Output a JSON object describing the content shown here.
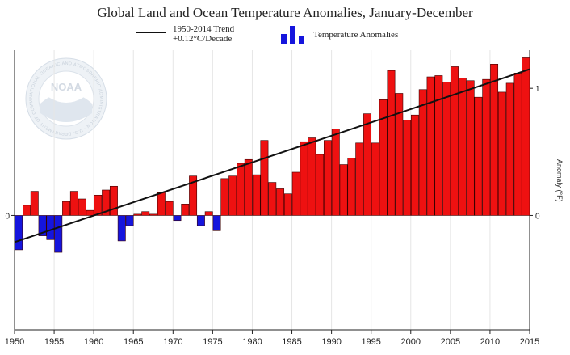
{
  "title": "Global Land and Ocean Temperature Anomalies, January-December",
  "legend": {
    "trend_line1": "1950-2014 Trend",
    "trend_line2": "+0.12°C/Decade",
    "anomalies_label": "Temperature Anomalies"
  },
  "watermark": {
    "text": "NOAA",
    "ring_text": "NATIONAL OCEANIC AND ATMOSPHERIC ADMINISTRATION · U.S. DEPARTMENT OF COMMERCE"
  },
  "colors": {
    "positive": "#ee1111",
    "negative": "#1515dd",
    "trend": "#111111",
    "grid": "#e6e6e6"
  },
  "chart_data": {
    "type": "bar",
    "title": "Global Land and Ocean Temperature Anomalies, January-December",
    "xlabel": "",
    "ylabel_right": "Anomaly (°F)",
    "xlim": [
      1950,
      2015
    ],
    "ylim": [
      -0.9,
      1.3
    ],
    "x_ticks": [
      1950,
      1955,
      1960,
      1965,
      1970,
      1975,
      1980,
      1985,
      1990,
      1995,
      2000,
      2005,
      2010,
      2015
    ],
    "y_ticks_left": [
      0
    ],
    "y_ticks_right": [
      0,
      1
    ],
    "categories": [
      1950,
      1951,
      1952,
      1953,
      1954,
      1955,
      1956,
      1957,
      1958,
      1959,
      1960,
      1961,
      1962,
      1963,
      1964,
      1965,
      1966,
      1967,
      1968,
      1969,
      1970,
      1971,
      1972,
      1973,
      1974,
      1975,
      1976,
      1977,
      1978,
      1979,
      1980,
      1981,
      1982,
      1983,
      1984,
      1985,
      1986,
      1987,
      1988,
      1989,
      1990,
      1991,
      1992,
      1993,
      1994,
      1995,
      1996,
      1997,
      1998,
      1999,
      2000,
      2001,
      2002,
      2003,
      2004,
      2005,
      2006,
      2007,
      2008,
      2009,
      2010,
      2011,
      2012,
      2013,
      2014
    ],
    "values": [
      -0.27,
      0.08,
      0.19,
      -0.16,
      -0.19,
      -0.29,
      0.11,
      0.19,
      0.13,
      0.04,
      0.16,
      0.2,
      0.23,
      -0.2,
      -0.08,
      0.01,
      0.03,
      0.01,
      0.18,
      0.11,
      -0.04,
      0.09,
      0.31,
      -0.08,
      0.03,
      -0.12,
      0.29,
      0.31,
      0.41,
      0.44,
      0.32,
      0.59,
      0.26,
      0.21,
      0.17,
      0.34,
      0.58,
      0.61,
      0.48,
      0.59,
      0.68,
      0.4,
      0.45,
      0.57,
      0.8,
      0.57,
      0.91,
      1.14,
      0.96,
      0.75,
      0.79,
      0.99,
      1.09,
      1.1,
      1.05,
      1.17,
      1.08,
      1.06,
      0.93,
      1.07,
      1.19,
      0.97,
      1.04,
      1.12,
      1.24
    ],
    "trend": {
      "label": "1950-2014 Trend",
      "rate": "+0.12°C/Decade",
      "start": [
        1950,
        -0.21
      ],
      "end": [
        2015,
        1.15
      ]
    }
  }
}
